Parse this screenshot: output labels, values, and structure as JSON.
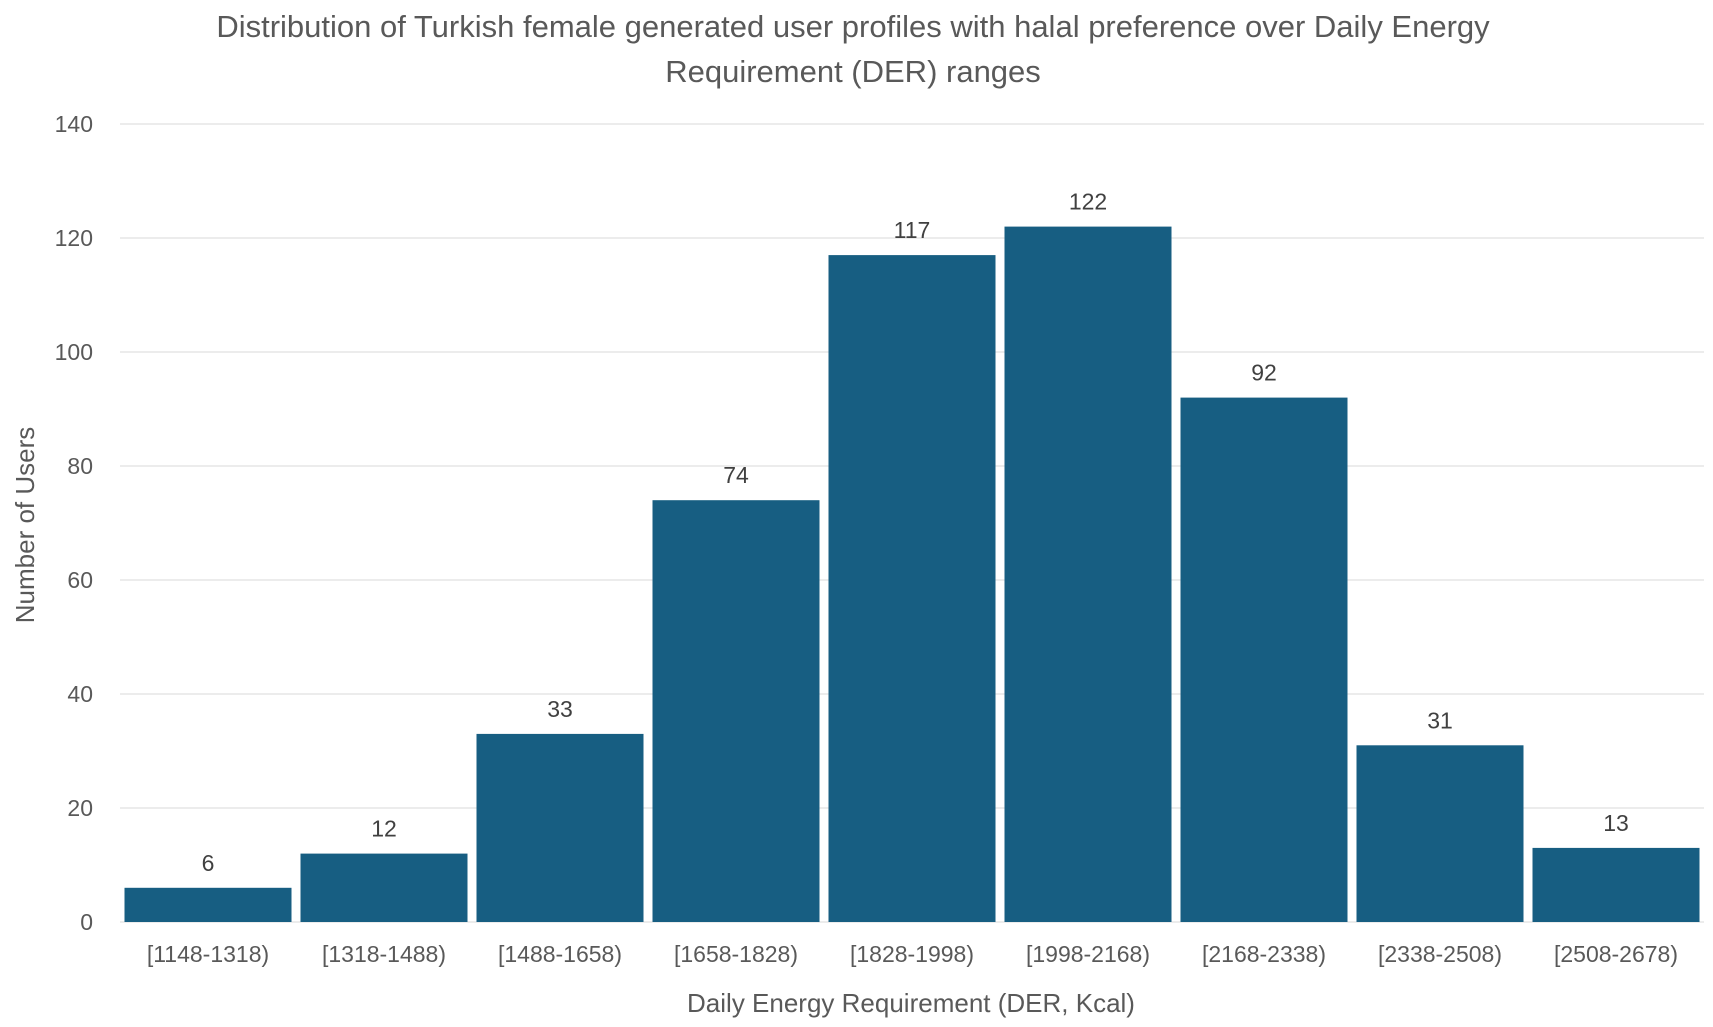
{
  "chart_data": {
    "type": "bar",
    "title_lines": [
      "Distribution of Turkish female generated user profiles with halal preference over Daily Energy",
      "Requirement (DER) ranges"
    ],
    "xlabel": "Daily Energy Requirement (DER, Kcal)",
    "ylabel": "Number of Users",
    "categories": [
      "[1148-1318)",
      "[1318-1488)",
      "[1488-1658)",
      "[1658-1828)",
      "[1828-1998)",
      "[1998-2168)",
      "[2168-2338)",
      "[2338-2508)",
      "[2508-2678)"
    ],
    "values": [
      6,
      12,
      33,
      74,
      117,
      122,
      92,
      31,
      13
    ],
    "ylim": [
      0,
      140
    ],
    "yticks": [
      0,
      20,
      40,
      60,
      80,
      100,
      120,
      140
    ],
    "grid": true,
    "legend": "none",
    "bar_color": "#175e82",
    "data_labels": true
  }
}
